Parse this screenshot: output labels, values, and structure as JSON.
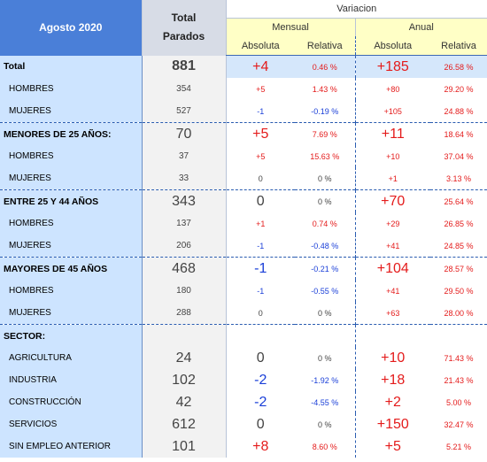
{
  "header": {
    "month": "Agosto 2020",
    "total_line1": "Total",
    "total_line2": "Parados",
    "variacion": "Variacion",
    "mensual": "Mensual",
    "anual": "Anual",
    "absoluta": "Absoluta",
    "relativa": "Relativa"
  },
  "rows": [
    {
      "label": "Total",
      "total": "881",
      "m_abs": "+4",
      "m_rel": "0.46 %",
      "a_abs": "+185",
      "a_rel": "26.58 %"
    },
    {
      "label": "HOMBRES",
      "total": "354",
      "m_abs": "+5",
      "m_rel": "1.43 %",
      "a_abs": "+80",
      "a_rel": "29.20 %"
    },
    {
      "label": "MUJERES",
      "total": "527",
      "m_abs": "-1",
      "m_rel": "-0.19 %",
      "a_abs": "+105",
      "a_rel": "24.88 %"
    },
    {
      "label": "MENORES DE 25 AÑOS:",
      "total": "70",
      "m_abs": "+5",
      "m_rel": "7.69 %",
      "a_abs": "+11",
      "a_rel": "18.64 %"
    },
    {
      "label": "HOMBRES",
      "total": "37",
      "m_abs": "+5",
      "m_rel": "15.63 %",
      "a_abs": "+10",
      "a_rel": "37.04 %"
    },
    {
      "label": "MUJERES",
      "total": "33",
      "m_abs": "0",
      "m_rel": "0 %",
      "a_abs": "+1",
      "a_rel": "3.13 %"
    },
    {
      "label": "ENTRE 25 Y 44 AÑOS",
      "total": "343",
      "m_abs": "0",
      "m_rel": "0 %",
      "a_abs": "+70",
      "a_rel": "25.64 %"
    },
    {
      "label": "HOMBRES",
      "total": "137",
      "m_abs": "+1",
      "m_rel": "0.74 %",
      "a_abs": "+29",
      "a_rel": "26.85 %"
    },
    {
      "label": "MUJERES",
      "total": "206",
      "m_abs": "-1",
      "m_rel": "-0.48 %",
      "a_abs": "+41",
      "a_rel": "24.85 %"
    },
    {
      "label": "MAYORES DE 45 AÑOS",
      "total": "468",
      "m_abs": "-1",
      "m_rel": "-0.21 %",
      "a_abs": "+104",
      "a_rel": "28.57 %"
    },
    {
      "label": "HOMBRES",
      "total": "180",
      "m_abs": "-1",
      "m_rel": "-0.55 %",
      "a_abs": "+41",
      "a_rel": "29.50 %"
    },
    {
      "label": "MUJERES",
      "total": "288",
      "m_abs": "0",
      "m_rel": "0 %",
      "a_abs": "+63",
      "a_rel": "28.00 %"
    },
    {
      "label": "SECTOR:"
    },
    {
      "label": "AGRICULTURA",
      "total": "24",
      "m_abs": "0",
      "m_rel": "0 %",
      "a_abs": "+10",
      "a_rel": "71.43 %"
    },
    {
      "label": "INDUSTRIA",
      "total": "102",
      "m_abs": "-2",
      "m_rel": "-1.92 %",
      "a_abs": "+18",
      "a_rel": "21.43 %"
    },
    {
      "label": "CONSTRUCCIÓN",
      "total": "42",
      "m_abs": "-2",
      "m_rel": "-4.55 %",
      "a_abs": "+2",
      "a_rel": "5.00 %"
    },
    {
      "label": "SERVICIOS",
      "total": "612",
      "m_abs": "0",
      "m_rel": "0 %",
      "a_abs": "+150",
      "a_rel": "32.47 %"
    },
    {
      "label": "SIN EMPLEO ANTERIOR",
      "total": "101",
      "m_abs": "+8",
      "m_rel": "8.60 %",
      "a_abs": "+5",
      "a_rel": "5.21 %"
    }
  ],
  "colors": {
    "header_blue": "#4a7fd8",
    "label_bg": "#cde4ff",
    "positive": "#e41b1b",
    "negative": "#1a3fd8",
    "neutral": "#444444"
  }
}
